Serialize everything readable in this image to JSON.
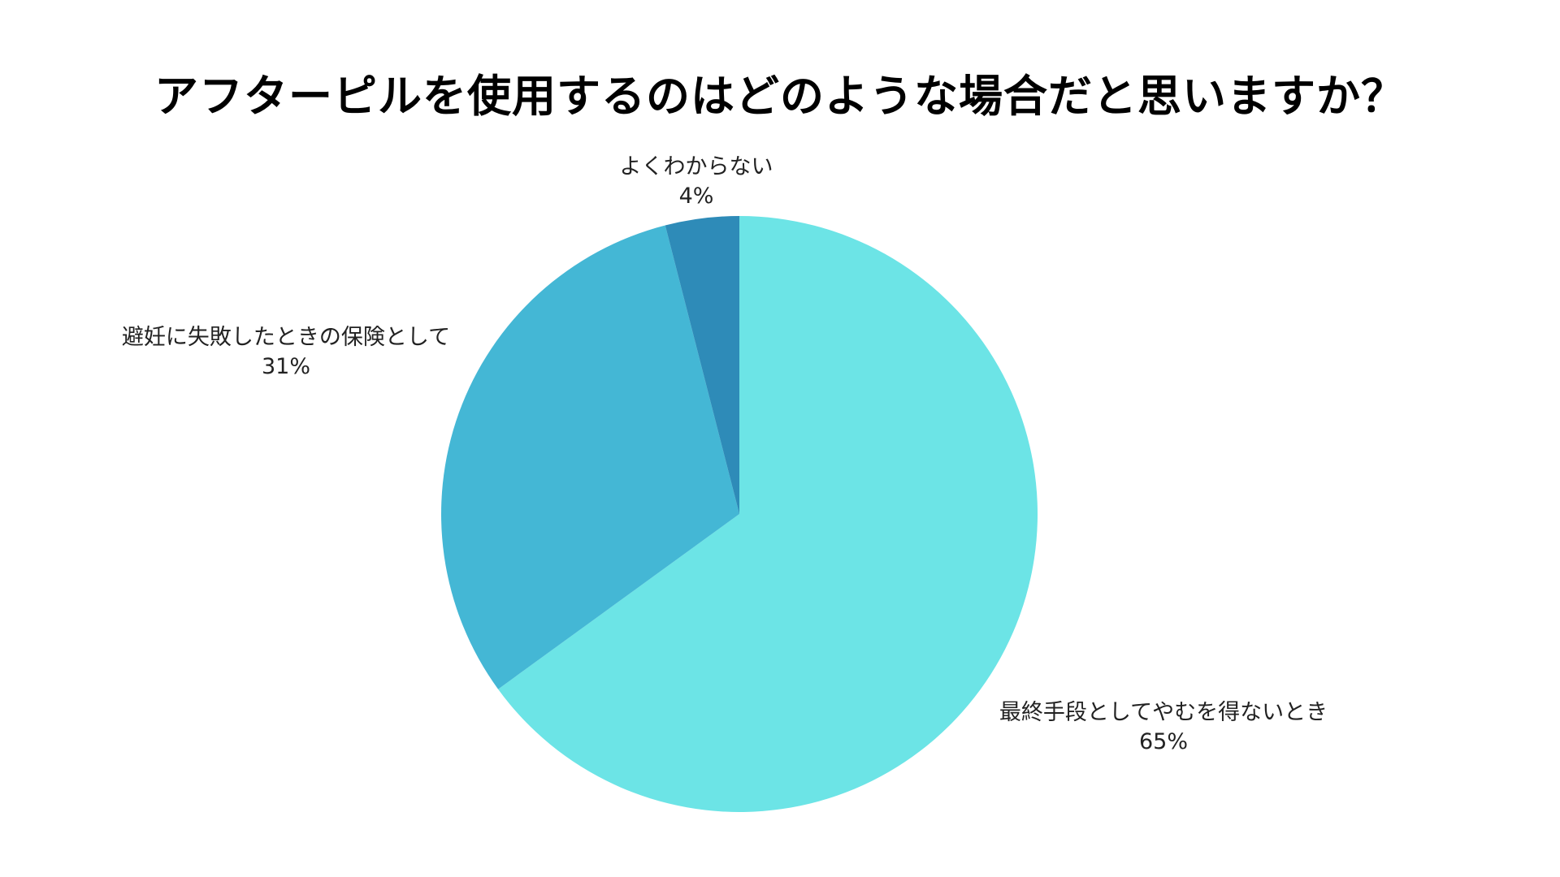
{
  "chart_data": {
    "type": "pie",
    "title": "アフターピルを使用するのはどのような場合だと思いますか？",
    "slices": [
      {
        "label": "最終手段としてやむを得ないとき",
        "value": 65,
        "value_label": "65%",
        "color": "#6ce4e6"
      },
      {
        "label": "避妊に失敗したときの保険として",
        "value": 31,
        "value_label": "31%",
        "color": "#44b7d5"
      },
      {
        "label": "よくわからない",
        "value": 4,
        "value_label": "4%",
        "color": "#2e8bb8"
      }
    ],
    "start_angle": "12 o'clock",
    "direction": "clockwise",
    "legend": "none",
    "label_placement": "outside"
  }
}
